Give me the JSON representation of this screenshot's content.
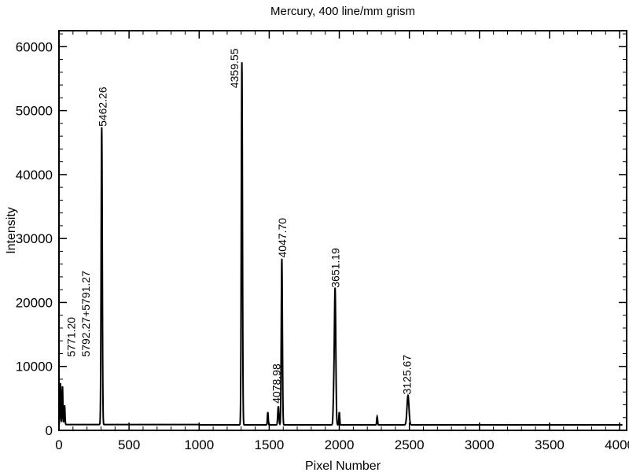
{
  "chart_data": {
    "type": "line",
    "title": "Mercury, 400 line/mm grism",
    "xlabel": "Pixel Number",
    "ylabel": "Intensity",
    "xlim": [
      0,
      4050
    ],
    "ylim": [
      0,
      62500
    ],
    "xticks": [
      0,
      500,
      1000,
      1500,
      2000,
      2500,
      3000,
      3500,
      4000
    ],
    "yticks": [
      0,
      10000,
      20000,
      30000,
      40000,
      50000,
      60000
    ],
    "grid": false,
    "baseline": 900,
    "peaks": [
      {
        "x": 10,
        "y": 6500,
        "w": 3
      },
      {
        "x": 25,
        "y": 6000,
        "w": 3
      },
      {
        "x": 40,
        "y": 3000,
        "w": 3
      },
      {
        "x": 305,
        "y": 46500,
        "w": 4
      },
      {
        "x": 1305,
        "y": 56700,
        "w": 4
      },
      {
        "x": 1490,
        "y": 2000,
        "w": 3
      },
      {
        "x": 1565,
        "y": 2900,
        "w": 4
      },
      {
        "x": 1590,
        "y": 26000,
        "w": 4
      },
      {
        "x": 1960,
        "y": 4000,
        "w": 4
      },
      {
        "x": 1970,
        "y": 21300,
        "w": 5
      },
      {
        "x": 2000,
        "y": 2000,
        "w": 3
      },
      {
        "x": 2270,
        "y": 1300,
        "w": 3
      },
      {
        "x": 2490,
        "y": 4600,
        "w": 7
      }
    ],
    "annotations": [
      {
        "text": "5771.20",
        "x": 115,
        "y": 11500
      },
      {
        "text": "5792.27+5791.27",
        "x": 220,
        "y": 11500
      },
      {
        "text": "5462.26",
        "x": 340,
        "y": 47500
      },
      {
        "text": "4359.55",
        "x": 1280,
        "y": 53500
      },
      {
        "text": "4078.98",
        "x": 1580,
        "y": 4200
      },
      {
        "text": "4047.70",
        "x": 1620,
        "y": 27000
      },
      {
        "text": "3651.19",
        "x": 2000,
        "y": 22300
      },
      {
        "text": "3125.67",
        "x": 2510,
        "y": 5600
      }
    ]
  }
}
